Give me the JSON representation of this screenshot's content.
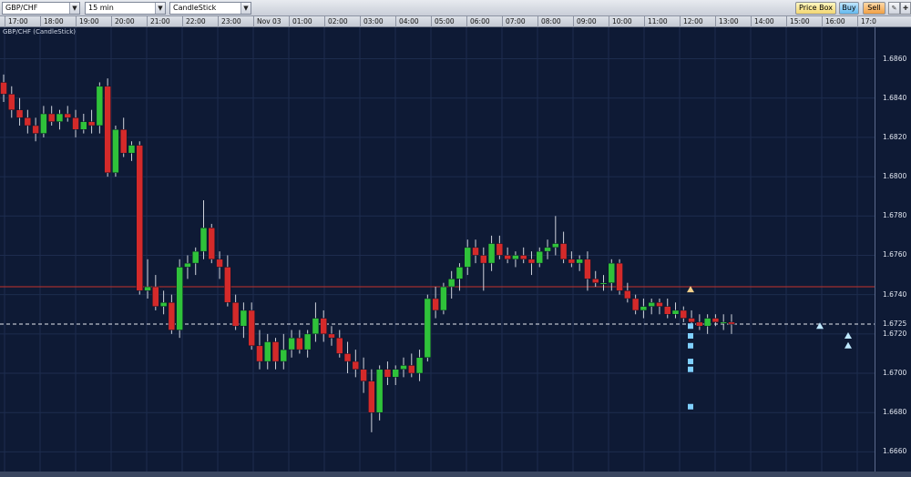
{
  "toolbar": {
    "symbol": "GBP/CHF",
    "timeframe": "15 min",
    "chart_style": "CandleStick",
    "price_box_label": "Price Box",
    "buy_label": "Buy",
    "sell_label": "Sell",
    "icons": [
      "chart-settings-icon",
      "crosshair-icon"
    ]
  },
  "chart": {
    "title": "GBP/CHF (CandleStick)",
    "time_labels": [
      "17:00",
      "18:00",
      "19:00",
      "20:00",
      "21:00",
      "22:00",
      "23:00",
      "Nov 03",
      "01:00",
      "02:00",
      "03:00",
      "04:00",
      "05:00",
      "06:00",
      "07:00",
      "08:00",
      "09:00",
      "10:00",
      "11:00",
      "12:00",
      "13:00",
      "14:00",
      "15:00",
      "16:00",
      "17:0"
    ],
    "price_labels": [
      "1.6860",
      "1.6840",
      "1.6820",
      "1.6800",
      "1.6780",
      "1.6760",
      "1.6740",
      "1.6725",
      "1.6720",
      "1.6700",
      "1.6680",
      "1.6660"
    ],
    "colors": {
      "background": "#0e1a35",
      "grid": "#1d2c4e",
      "up": "#2fc23a",
      "down": "#d42a2a",
      "wick": "#cfd3dc",
      "red_line": "#c4312b",
      "dashed_line": "#e6e8ee",
      "markers": "#7fd0ff"
    }
  },
  "chart_data": {
    "type": "candlestick",
    "symbol": "GBP/CHF",
    "interval": "15 min",
    "ylim": [
      1.665,
      1.688
    ],
    "ohlc": [
      [
        1.6848,
        1.6852,
        1.6838,
        1.6842
      ],
      [
        1.6842,
        1.6846,
        1.683,
        1.6834
      ],
      [
        1.6834,
        1.684,
        1.6826,
        1.683
      ],
      [
        1.683,
        1.6834,
        1.6822,
        1.6826
      ],
      [
        1.6826,
        1.683,
        1.6818,
        1.6822
      ],
      [
        1.6822,
        1.6836,
        1.682,
        1.6832
      ],
      [
        1.6832,
        1.6836,
        1.6826,
        1.6828
      ],
      [
        1.6828,
        1.6834,
        1.6824,
        1.6832
      ],
      [
        1.6832,
        1.6836,
        1.6828,
        1.683
      ],
      [
        1.683,
        1.6834,
        1.682,
        1.6824
      ],
      [
        1.6824,
        1.6832,
        1.6822,
        1.6828
      ],
      [
        1.6828,
        1.6834,
        1.6822,
        1.6826
      ],
      [
        1.6826,
        1.6848,
        1.6822,
        1.6846
      ],
      [
        1.6846,
        1.685,
        1.68,
        1.6802
      ],
      [
        1.6802,
        1.6826,
        1.68,
        1.6824
      ],
      [
        1.6824,
        1.683,
        1.681,
        1.6812
      ],
      [
        1.6812,
        1.6818,
        1.6808,
        1.6816
      ],
      [
        1.6816,
        1.6818,
        1.674,
        1.6742
      ],
      [
        1.6742,
        1.6758,
        1.6738,
        1.6744
      ],
      [
        1.6744,
        1.675,
        1.6732,
        1.6734
      ],
      [
        1.6734,
        1.6742,
        1.673,
        1.6736
      ],
      [
        1.6736,
        1.674,
        1.672,
        1.6722
      ],
      [
        1.6722,
        1.6758,
        1.6718,
        1.6754
      ],
      [
        1.6754,
        1.676,
        1.6748,
        1.6756
      ],
      [
        1.6756,
        1.6764,
        1.675,
        1.6762
      ],
      [
        1.6762,
        1.6788,
        1.6758,
        1.6774
      ],
      [
        1.6774,
        1.6776,
        1.6756,
        1.6758
      ],
      [
        1.6758,
        1.6762,
        1.6748,
        1.6754
      ],
      [
        1.6754,
        1.676,
        1.6734,
        1.6736
      ],
      [
        1.6736,
        1.674,
        1.6722,
        1.6724
      ],
      [
        1.6724,
        1.6736,
        1.6718,
        1.6732
      ],
      [
        1.6732,
        1.6736,
        1.6712,
        1.6714
      ],
      [
        1.6714,
        1.6722,
        1.6702,
        1.6706
      ],
      [
        1.6706,
        1.672,
        1.6702,
        1.6716
      ],
      [
        1.6716,
        1.6718,
        1.6702,
        1.6706
      ],
      [
        1.6706,
        1.672,
        1.6702,
        1.6712
      ],
      [
        1.6712,
        1.6722,
        1.6708,
        1.6718
      ],
      [
        1.6718,
        1.6722,
        1.671,
        1.6712
      ],
      [
        1.6712,
        1.6722,
        1.6708,
        1.672
      ],
      [
        1.672,
        1.6736,
        1.6716,
        1.6728
      ],
      [
        1.6728,
        1.6732,
        1.6716,
        1.672
      ],
      [
        1.672,
        1.6724,
        1.6714,
        1.6718
      ],
      [
        1.6718,
        1.6722,
        1.6708,
        1.671
      ],
      [
        1.671,
        1.6716,
        1.67,
        1.6706
      ],
      [
        1.6706,
        1.6712,
        1.6698,
        1.6702
      ],
      [
        1.6702,
        1.6708,
        1.669,
        1.6696
      ],
      [
        1.6696,
        1.6702,
        1.667,
        1.668
      ],
      [
        1.668,
        1.6704,
        1.6676,
        1.6702
      ],
      [
        1.6702,
        1.6706,
        1.6694,
        1.6698
      ],
      [
        1.6698,
        1.6704,
        1.6694,
        1.6702
      ],
      [
        1.6702,
        1.6708,
        1.6698,
        1.6704
      ],
      [
        1.6704,
        1.671,
        1.6698,
        1.67
      ],
      [
        1.67,
        1.6712,
        1.6696,
        1.6708
      ],
      [
        1.6708,
        1.674,
        1.6706,
        1.6738
      ],
      [
        1.6738,
        1.6744,
        1.6728,
        1.6732
      ],
      [
        1.6732,
        1.6746,
        1.673,
        1.6744
      ],
      [
        1.6744,
        1.6752,
        1.6738,
        1.6748
      ],
      [
        1.6748,
        1.6756,
        1.6742,
        1.6754
      ],
      [
        1.6754,
        1.6768,
        1.675,
        1.6764
      ],
      [
        1.6764,
        1.6768,
        1.6756,
        1.676
      ],
      [
        1.676,
        1.6764,
        1.6742,
        1.6756
      ],
      [
        1.6756,
        1.677,
        1.6752,
        1.6766
      ],
      [
        1.6766,
        1.677,
        1.6758,
        1.676
      ],
      [
        1.676,
        1.6764,
        1.6756,
        1.6758
      ],
      [
        1.6758,
        1.6762,
        1.6754,
        1.676
      ],
      [
        1.676,
        1.6764,
        1.6756,
        1.6758
      ],
      [
        1.6758,
        1.6762,
        1.675,
        1.6756
      ],
      [
        1.6756,
        1.6764,
        1.6754,
        1.6762
      ],
      [
        1.6762,
        1.6768,
        1.6758,
        1.6764
      ],
      [
        1.6764,
        1.678,
        1.676,
        1.6766
      ],
      [
        1.6766,
        1.6772,
        1.6756,
        1.6758
      ],
      [
        1.6758,
        1.6762,
        1.6754,
        1.6756
      ],
      [
        1.6756,
        1.676,
        1.6752,
        1.6758
      ],
      [
        1.6758,
        1.6762,
        1.6742,
        1.6748
      ],
      [
        1.6748,
        1.6752,
        1.6744,
        1.6746
      ],
      [
        1.6746,
        1.675,
        1.6742,
        1.6746
      ],
      [
        1.6746,
        1.6758,
        1.6742,
        1.6756
      ],
      [
        1.6756,
        1.6758,
        1.674,
        1.6742
      ],
      [
        1.6742,
        1.6746,
        1.6736,
        1.6738
      ],
      [
        1.6738,
        1.674,
        1.673,
        1.6732
      ],
      [
        1.6732,
        1.6738,
        1.6728,
        1.6734
      ],
      [
        1.6734,
        1.6738,
        1.673,
        1.6736
      ],
      [
        1.6736,
        1.6738,
        1.673,
        1.6734
      ],
      [
        1.6734,
        1.6738,
        1.6728,
        1.673
      ],
      [
        1.673,
        1.6736,
        1.6728,
        1.6732
      ],
      [
        1.6732,
        1.6734,
        1.6726,
        1.6728
      ],
      [
        1.6728,
        1.6732,
        1.6724,
        1.6726
      ],
      [
        1.6726,
        1.673,
        1.6722,
        1.6724
      ],
      [
        1.6724,
        1.673,
        1.672,
        1.6728
      ],
      [
        1.6728,
        1.673,
        1.6724,
        1.6726
      ],
      [
        1.6726,
        1.673,
        1.6722,
        1.6726
      ],
      [
        1.6726,
        1.673,
        1.672,
        1.6725
      ]
    ],
    "horizontal_lines": [
      {
        "price": 1.6744,
        "style": "solid",
        "color": "#c4312b"
      },
      {
        "price": 1.6725,
        "style": "dashed",
        "color": "#e6e8ee"
      }
    ],
    "current_price": 1.6725,
    "markers": {
      "squares": [
        1.6724,
        1.6719,
        1.6714,
        1.6706,
        1.6702,
        1.6683
      ],
      "arrows_up": [
        1.6724,
        1.6719,
        1.6714
      ]
    }
  }
}
